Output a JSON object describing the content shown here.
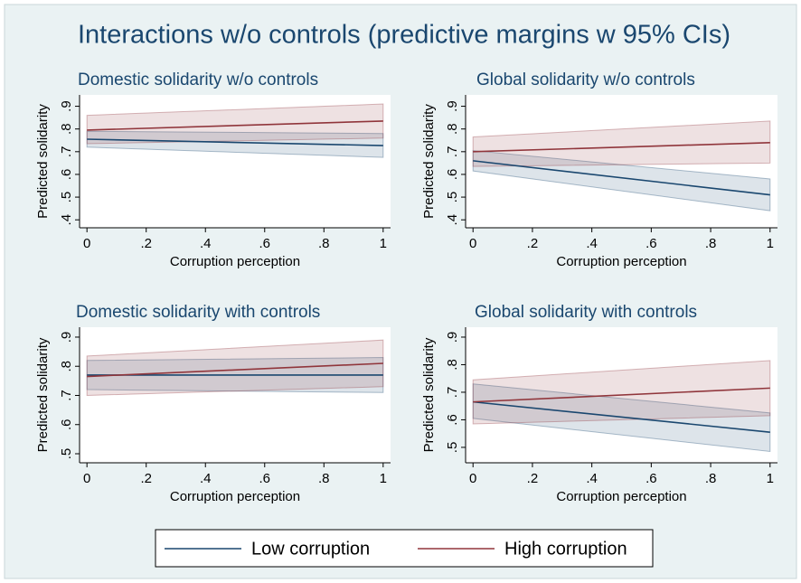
{
  "title": "Interactions w/o controls (predictive margins w 95% CIs)",
  "chart_data": [
    {
      "type": "line",
      "title": "Domestic solidarity w/o controls",
      "xlabel": "Corruption perception",
      "ylabel": "Predicted solidarity",
      "x": [
        0,
        1
      ],
      "xlim": [
        -0.025,
        1.025
      ],
      "xticks": [
        0,
        {
          "value": 0.2,
          "label": ".2"
        },
        {
          "value": 0.4,
          "label": ".4"
        },
        {
          "value": 0.6,
          "label": ".6"
        },
        {
          "value": 0.8,
          "label": ".8"
        },
        1
      ],
      "ylim": [
        0.365,
        0.95
      ],
      "yticks": [
        {
          "value": 0.4,
          "label": ".4"
        },
        {
          "value": 0.5,
          "label": ".5"
        },
        {
          "value": 0.6,
          "label": ".6"
        },
        {
          "value": 0.7,
          "label": ".7"
        },
        {
          "value": 0.8,
          "label": ".8"
        },
        {
          "value": 0.9,
          "label": ".9"
        }
      ],
      "grid": false,
      "series": [
        {
          "name": "Low corruption",
          "color": "#1a476f",
          "values": [
            0.755,
            0.727
          ],
          "lower": [
            0.72,
            0.675
          ],
          "upper": [
            0.79,
            0.78
          ]
        },
        {
          "name": "High corruption",
          "color": "#90353b",
          "values": [
            0.795,
            0.835
          ],
          "lower": [
            0.735,
            0.76
          ],
          "upper": [
            0.86,
            0.91
          ]
        }
      ]
    },
    {
      "type": "line",
      "title": "Global solidarity w/o controls",
      "xlabel": "Corruption perception",
      "ylabel": "Predicted solidarity",
      "x": [
        0,
        1
      ],
      "xlim": [
        -0.025,
        1.025
      ],
      "xticks": [
        0,
        {
          "value": 0.2,
          "label": ".2"
        },
        {
          "value": 0.4,
          "label": ".4"
        },
        {
          "value": 0.6,
          "label": ".6"
        },
        {
          "value": 0.8,
          "label": ".8"
        },
        1
      ],
      "ylim": [
        0.365,
        0.95
      ],
      "yticks": [
        {
          "value": 0.4,
          "label": ".4"
        },
        {
          "value": 0.5,
          "label": ".5"
        },
        {
          "value": 0.6,
          "label": ".6"
        },
        {
          "value": 0.7,
          "label": ".7"
        },
        {
          "value": 0.8,
          "label": ".8"
        },
        {
          "value": 0.9,
          "label": ".9"
        }
      ],
      "grid": false,
      "series": [
        {
          "name": "Low corruption",
          "color": "#1a476f",
          "values": [
            0.66,
            0.51
          ],
          "lower": [
            0.615,
            0.44
          ],
          "upper": [
            0.705,
            0.58
          ]
        },
        {
          "name": "High corruption",
          "color": "#90353b",
          "values": [
            0.7,
            0.74
          ],
          "lower": [
            0.635,
            0.65
          ],
          "upper": [
            0.765,
            0.835
          ]
        }
      ]
    },
    {
      "type": "line",
      "title": "Domestic solidarity with controls",
      "xlabel": "Corruption perception",
      "ylabel": "Predicted solidarity",
      "x": [
        0,
        1
      ],
      "xlim": [
        -0.025,
        1.025
      ],
      "xticks": [
        0,
        {
          "value": 0.2,
          "label": ".2"
        },
        {
          "value": 0.4,
          "label": ".4"
        },
        {
          "value": 0.6,
          "label": ".6"
        },
        {
          "value": 0.8,
          "label": ".8"
        },
        1
      ],
      "ylim": [
        0.469,
        0.934
      ],
      "yticks": [
        {
          "value": 0.5,
          "label": ".5"
        },
        {
          "value": 0.6,
          "label": ".6"
        },
        {
          "value": 0.7,
          "label": ".7"
        },
        {
          "value": 0.8,
          "label": ".8"
        },
        {
          "value": 0.9,
          "label": ".9"
        }
      ],
      "grid": false,
      "series": [
        {
          "name": "Low corruption",
          "color": "#1a476f",
          "values": [
            0.77,
            0.77
          ],
          "lower": [
            0.72,
            0.71
          ],
          "upper": [
            0.82,
            0.83
          ]
        },
        {
          "name": "High corruption",
          "color": "#90353b",
          "values": [
            0.765,
            0.81
          ],
          "lower": [
            0.7,
            0.73
          ],
          "upper": [
            0.835,
            0.89
          ]
        }
      ]
    },
    {
      "type": "line",
      "title": "Global solidarity with controls",
      "xlabel": "Corruption perception",
      "ylabel": "Predicted solidarity",
      "x": [
        0,
        1
      ],
      "xlim": [
        -0.025,
        1.025
      ],
      "xticks": [
        0,
        {
          "value": 0.2,
          "label": ".2"
        },
        {
          "value": 0.4,
          "label": ".4"
        },
        {
          "value": 0.6,
          "label": ".6"
        },
        {
          "value": 0.8,
          "label": ".8"
        },
        1
      ],
      "ylim": [
        0.444,
        0.936
      ],
      "yticks": [
        {
          "value": 0.5,
          "label": ".5"
        },
        {
          "value": 0.6,
          "label": ".6"
        },
        {
          "value": 0.7,
          "label": ".7"
        },
        {
          "value": 0.8,
          "label": ".8"
        },
        {
          "value": 0.9,
          "label": ".9"
        }
      ],
      "grid": false,
      "series": [
        {
          "name": "Low corruption",
          "color": "#1a476f",
          "values": [
            0.665,
            0.555
          ],
          "lower": [
            0.605,
            0.485
          ],
          "upper": [
            0.73,
            0.625
          ]
        },
        {
          "name": "High corruption",
          "color": "#90353b",
          "values": [
            0.665,
            0.715
          ],
          "lower": [
            0.585,
            0.615
          ],
          "upper": [
            0.745,
            0.815
          ]
        }
      ]
    }
  ]
}
